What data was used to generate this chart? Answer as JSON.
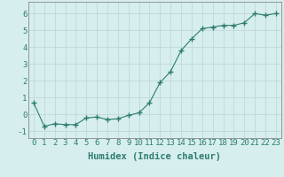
{
  "x": [
    0,
    1,
    2,
    3,
    4,
    5,
    6,
    7,
    8,
    9,
    10,
    11,
    12,
    13,
    14,
    15,
    16,
    17,
    18,
    19,
    20,
    21,
    22,
    23
  ],
  "y": [
    0.7,
    -0.7,
    -0.55,
    -0.6,
    -0.6,
    -0.2,
    -0.15,
    -0.3,
    -0.25,
    -0.05,
    0.1,
    0.7,
    1.9,
    2.55,
    3.8,
    4.5,
    5.1,
    5.2,
    5.3,
    5.3,
    5.45,
    6.0,
    5.9,
    6.0
  ],
  "line_color": "#2e7d6e",
  "marker": "+",
  "marker_size": 4,
  "bg_color": "#d6eeee",
  "grid_color": "#c0d8d8",
  "xlabel": "Humidex (Indice chaleur)",
  "xlim": [
    -0.5,
    23.5
  ],
  "ylim": [
    -1.4,
    6.7
  ],
  "yticks": [
    -1,
    0,
    1,
    2,
    3,
    4,
    5,
    6
  ],
  "xticks": [
    0,
    1,
    2,
    3,
    4,
    5,
    6,
    7,
    8,
    9,
    10,
    11,
    12,
    13,
    14,
    15,
    16,
    17,
    18,
    19,
    20,
    21,
    22,
    23
  ],
  "xlabel_fontsize": 7.5,
  "tick_fontsize": 6.5,
  "label_color": "#2e7d6e",
  "spine_color": "#888888"
}
